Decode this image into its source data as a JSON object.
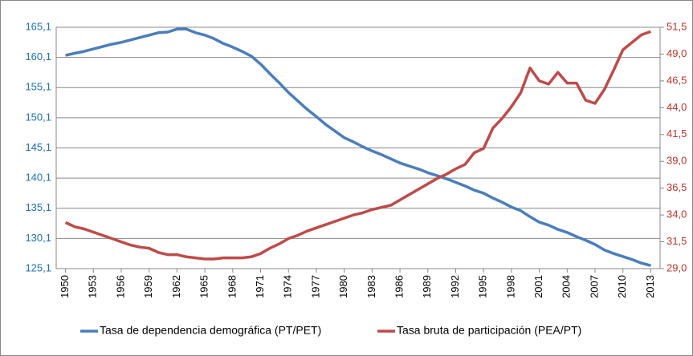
{
  "chart_data": {
    "type": "line",
    "x": [
      1950,
      1951,
      1952,
      1953,
      1954,
      1955,
      1956,
      1957,
      1958,
      1959,
      1960,
      1961,
      1962,
      1963,
      1964,
      1965,
      1966,
      1967,
      1968,
      1969,
      1970,
      1971,
      1972,
      1973,
      1974,
      1975,
      1976,
      1977,
      1978,
      1979,
      1980,
      1981,
      1982,
      1983,
      1984,
      1985,
      1986,
      1987,
      1988,
      1989,
      1990,
      1991,
      1992,
      1993,
      1994,
      1995,
      1996,
      1997,
      1998,
      1999,
      2000,
      2001,
      2002,
      2003,
      2004,
      2005,
      2006,
      2007,
      2008,
      2009,
      2010,
      2011,
      2012,
      2013
    ],
    "xlim": [
      1949,
      2014
    ],
    "xticks": [
      1950,
      1953,
      1956,
      1959,
      1962,
      1965,
      1968,
      1971,
      1974,
      1977,
      1980,
      1983,
      1986,
      1989,
      1992,
      1995,
      1998,
      2001,
      2004,
      2007,
      2010,
      2013
    ],
    "ylim": [
      125.1,
      165.1
    ],
    "yticks": [
      {
        "value": 125.1,
        "label": "125,1"
      },
      {
        "value": 130.1,
        "label": "130,1"
      },
      {
        "value": 135.1,
        "label": "135,1"
      },
      {
        "value": 140.1,
        "label": "140,1"
      },
      {
        "value": 145.1,
        "label": "145,1"
      },
      {
        "value": 150.1,
        "label": "150,1"
      },
      {
        "value": 155.1,
        "label": "155,1"
      },
      {
        "value": 160.1,
        "label": "160,1"
      },
      {
        "value": 165.1,
        "label": "165,1"
      }
    ],
    "y2lim": [
      29.0,
      51.5
    ],
    "y2ticks": [
      {
        "value": 29.0,
        "label": "29,0"
      },
      {
        "value": 31.5,
        "label": "31,5"
      },
      {
        "value": 34.0,
        "label": "34,0"
      },
      {
        "value": 36.5,
        "label": "36,5"
      },
      {
        "value": 39.0,
        "label": "39,0"
      },
      {
        "value": 41.5,
        "label": "41,5"
      },
      {
        "value": 44.0,
        "label": "44,0"
      },
      {
        "value": 46.5,
        "label": "46,5"
      },
      {
        "value": 49.0,
        "label": "49,0"
      },
      {
        "value": 51.5,
        "label": "51,5"
      }
    ],
    "grid": true,
    "legend": "bottom",
    "series": [
      {
        "name": "Tasa de dependencia demográfica (PT/PET)",
        "color": "#4a7ebb",
        "axis": "y",
        "values": [
          160.45,
          160.8,
          161.1,
          161.5,
          161.9,
          162.3,
          162.6,
          163.0,
          163.4,
          163.8,
          164.2,
          164.3,
          164.8,
          164.8,
          164.2,
          163.8,
          163.2,
          162.4,
          161.8,
          161.1,
          160.3,
          159.0,
          157.4,
          155.9,
          154.3,
          152.9,
          151.5,
          150.3,
          149.0,
          147.9,
          146.8,
          146.1,
          145.3,
          144.6,
          144.0,
          143.3,
          142.6,
          142.1,
          141.6,
          141.0,
          140.5,
          140.0,
          139.4,
          138.8,
          138.1,
          137.6,
          136.8,
          136.1,
          135.3,
          134.7,
          133.7,
          132.8,
          132.3,
          131.6,
          131.1,
          130.4,
          129.8,
          129.1,
          128.2,
          127.6,
          127.1,
          126.6,
          126.0,
          125.6
        ]
      },
      {
        "name": "Tasa bruta de participación (PEA/PT)",
        "color": "#be4b48",
        "axis": "y2",
        "values": [
          33.3,
          32.9,
          32.7,
          32.4,
          32.1,
          31.8,
          31.5,
          31.2,
          31.0,
          30.9,
          30.5,
          30.3,
          30.3,
          30.1,
          30.0,
          29.9,
          29.9,
          30.0,
          30.0,
          30.0,
          30.1,
          30.4,
          30.9,
          31.3,
          31.8,
          32.1,
          32.5,
          32.8,
          33.1,
          33.4,
          33.7,
          34.0,
          34.2,
          34.5,
          34.7,
          34.9,
          35.4,
          35.9,
          36.4,
          36.9,
          37.4,
          37.8,
          38.3,
          38.7,
          39.8,
          40.2,
          42.1,
          43.0,
          44.1,
          45.4,
          47.7,
          46.5,
          46.2,
          47.3,
          46.3,
          46.3,
          44.7,
          44.4,
          45.7,
          47.5,
          49.4,
          50.1,
          50.8,
          51.1
        ]
      }
    ]
  }
}
